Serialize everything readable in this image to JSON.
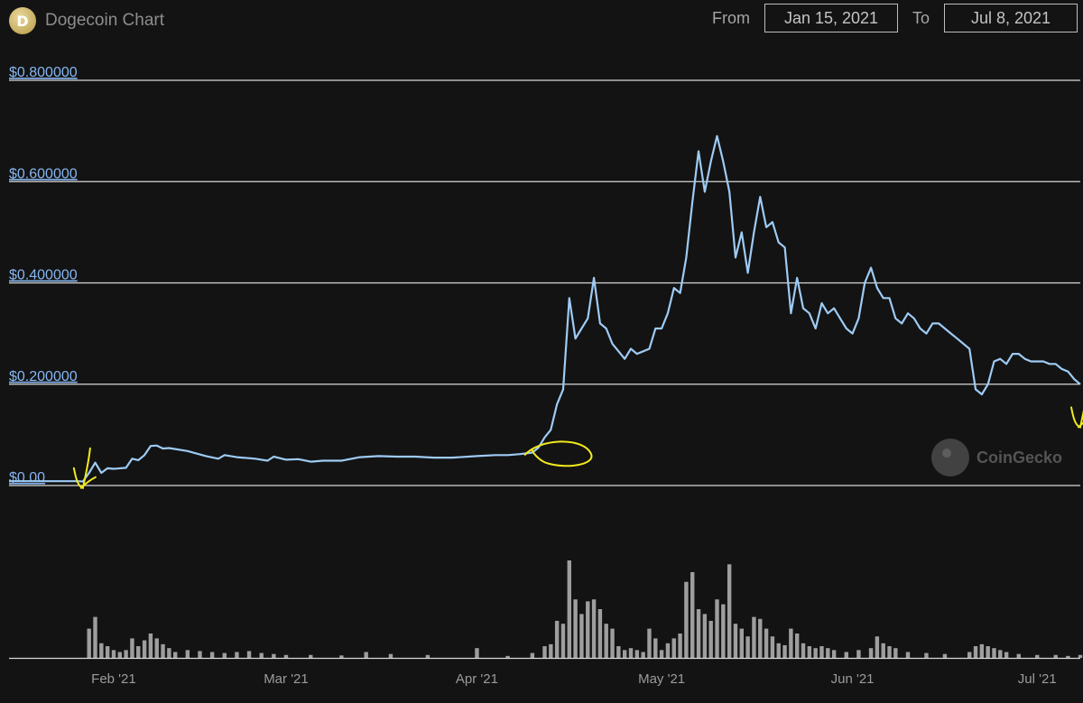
{
  "header": {
    "logo_letter": "D",
    "title": "Dogecoin Chart"
  },
  "range": {
    "from_label": "From",
    "from_value": "Jan 15, 2021",
    "to_label": "To",
    "to_value": "Jul 8, 2021"
  },
  "watermark": "CoinGecko",
  "colors": {
    "background": "#131313",
    "price_line": "#9ecbf5",
    "volume_bars": "#9e9e9e",
    "grid": "#d8d8d8",
    "annotation": "#f2ea1d",
    "ytick": "#86b6f2"
  },
  "chart_data": {
    "type": "line",
    "ylabel_format": "USD",
    "y_ticks": [
      "$0.00",
      "$0.200000",
      "$0.400000",
      "$0.600000",
      "$0.800000"
    ],
    "y_tick_values": [
      0,
      0.2,
      0.4,
      0.6,
      0.8
    ],
    "ylim": [
      0,
      0.8
    ],
    "x_ticks": [
      "Feb '21",
      "Mar '21",
      "Apr '21",
      "May '21",
      "Jun '21",
      "Jul '21"
    ],
    "x_tick_dates": [
      "2021-02-01",
      "2021-03-01",
      "2021-04-01",
      "2021-05-01",
      "2021-06-01",
      "2021-07-01"
    ],
    "xlim": [
      "2021-01-15",
      "2021-07-08"
    ],
    "grid": true,
    "series": [
      {
        "name": "",
        "kind": "price",
        "points": [
          [
            "2021-01-15",
            0.0085
          ],
          [
            "2021-01-20",
            0.0085
          ],
          [
            "2021-01-26",
            0.0085
          ],
          [
            "2021-01-27",
            0.008
          ],
          [
            "2021-01-28",
            0.025
          ],
          [
            "2021-01-29",
            0.045
          ],
          [
            "2021-01-30",
            0.025
          ],
          [
            "2021-01-31",
            0.034
          ],
          [
            "2021-02-01",
            0.033
          ],
          [
            "2021-02-03",
            0.035
          ],
          [
            "2021-02-04",
            0.053
          ],
          [
            "2021-02-05",
            0.05
          ],
          [
            "2021-02-06",
            0.06
          ],
          [
            "2021-02-07",
            0.078
          ],
          [
            "2021-02-08",
            0.079
          ],
          [
            "2021-02-09",
            0.073
          ],
          [
            "2021-02-10",
            0.074
          ],
          [
            "2021-02-13",
            0.068
          ],
          [
            "2021-02-16",
            0.058
          ],
          [
            "2021-02-18",
            0.053
          ],
          [
            "2021-02-19",
            0.06
          ],
          [
            "2021-02-21",
            0.056
          ],
          [
            "2021-02-24",
            0.053
          ],
          [
            "2021-02-26",
            0.049
          ],
          [
            "2021-02-27",
            0.057
          ],
          [
            "2021-03-01",
            0.051
          ],
          [
            "2021-03-03",
            0.052
          ],
          [
            "2021-03-05",
            0.047
          ],
          [
            "2021-03-07",
            0.049
          ],
          [
            "2021-03-10",
            0.049
          ],
          [
            "2021-03-13",
            0.056
          ],
          [
            "2021-03-16",
            0.058
          ],
          [
            "2021-03-19",
            0.057
          ],
          [
            "2021-03-22",
            0.057
          ],
          [
            "2021-03-25",
            0.055
          ],
          [
            "2021-03-28",
            0.055
          ],
          [
            "2021-04-01",
            0.058
          ],
          [
            "2021-04-04",
            0.06
          ],
          [
            "2021-04-06",
            0.06
          ],
          [
            "2021-04-08",
            0.062
          ],
          [
            "2021-04-10",
            0.065
          ],
          [
            "2021-04-11",
            0.075
          ],
          [
            "2021-04-12",
            0.095
          ],
          [
            "2021-04-13",
            0.11
          ],
          [
            "2021-04-14",
            0.16
          ],
          [
            "2021-04-15",
            0.19
          ],
          [
            "2021-04-16",
            0.37
          ],
          [
            "2021-04-17",
            0.29
          ],
          [
            "2021-04-18",
            0.31
          ],
          [
            "2021-04-19",
            0.33
          ],
          [
            "2021-04-20",
            0.41
          ],
          [
            "2021-04-21",
            0.32
          ],
          [
            "2021-04-22",
            0.31
          ],
          [
            "2021-04-23",
            0.28
          ],
          [
            "2021-04-24",
            0.265
          ],
          [
            "2021-04-25",
            0.25
          ],
          [
            "2021-04-26",
            0.27
          ],
          [
            "2021-04-27",
            0.26
          ],
          [
            "2021-04-28",
            0.265
          ],
          [
            "2021-04-29",
            0.27
          ],
          [
            "2021-04-30",
            0.31
          ],
          [
            "2021-05-01",
            0.31
          ],
          [
            "2021-05-02",
            0.34
          ],
          [
            "2021-05-03",
            0.39
          ],
          [
            "2021-05-04",
            0.38
          ],
          [
            "2021-05-05",
            0.45
          ],
          [
            "2021-05-06",
            0.56
          ],
          [
            "2021-05-07",
            0.66
          ],
          [
            "2021-05-08",
            0.58
          ],
          [
            "2021-05-09",
            0.64
          ],
          [
            "2021-05-10",
            0.69
          ],
          [
            "2021-05-11",
            0.64
          ],
          [
            "2021-05-12",
            0.58
          ],
          [
            "2021-05-13",
            0.45
          ],
          [
            "2021-05-14",
            0.5
          ],
          [
            "2021-05-15",
            0.42
          ],
          [
            "2021-05-16",
            0.5
          ],
          [
            "2021-05-17",
            0.57
          ],
          [
            "2021-05-18",
            0.51
          ],
          [
            "2021-05-19",
            0.52
          ],
          [
            "2021-05-20",
            0.48
          ],
          [
            "2021-05-21",
            0.47
          ],
          [
            "2021-05-22",
            0.34
          ],
          [
            "2021-05-23",
            0.41
          ],
          [
            "2021-05-24",
            0.35
          ],
          [
            "2021-05-25",
            0.34
          ],
          [
            "2021-05-26",
            0.31
          ],
          [
            "2021-05-27",
            0.36
          ],
          [
            "2021-05-28",
            0.34
          ],
          [
            "2021-05-29",
            0.35
          ],
          [
            "2021-05-30",
            0.33
          ],
          [
            "2021-05-31",
            0.31
          ],
          [
            "2021-06-01",
            0.3
          ],
          [
            "2021-06-02",
            0.33
          ],
          [
            "2021-06-03",
            0.4
          ],
          [
            "2021-06-04",
            0.43
          ],
          [
            "2021-06-05",
            0.39
          ],
          [
            "2021-06-06",
            0.37
          ],
          [
            "2021-06-07",
            0.37
          ],
          [
            "2021-06-08",
            0.33
          ],
          [
            "2021-06-09",
            0.32
          ],
          [
            "2021-06-10",
            0.34
          ],
          [
            "2021-06-11",
            0.33
          ],
          [
            "2021-06-12",
            0.31
          ],
          [
            "2021-06-13",
            0.3
          ],
          [
            "2021-06-14",
            0.32
          ],
          [
            "2021-06-15",
            0.32
          ],
          [
            "2021-06-16",
            0.31
          ],
          [
            "2021-06-17",
            0.3
          ],
          [
            "2021-06-18",
            0.29
          ],
          [
            "2021-06-19",
            0.28
          ],
          [
            "2021-06-20",
            0.27
          ],
          [
            "2021-06-21",
            0.19
          ],
          [
            "2021-06-22",
            0.18
          ],
          [
            "2021-06-23",
            0.2
          ],
          [
            "2021-06-24",
            0.245
          ],
          [
            "2021-06-25",
            0.25
          ],
          [
            "2021-06-26",
            0.24
          ],
          [
            "2021-06-27",
            0.26
          ],
          [
            "2021-06-28",
            0.26
          ],
          [
            "2021-06-29",
            0.25
          ],
          [
            "2021-06-30",
            0.245
          ],
          [
            "2021-07-01",
            0.245
          ],
          [
            "2021-07-02",
            0.245
          ],
          [
            "2021-07-03",
            0.24
          ],
          [
            "2021-07-04",
            0.24
          ],
          [
            "2021-07-05",
            0.23
          ],
          [
            "2021-07-06",
            0.225
          ],
          [
            "2021-07-07",
            0.21
          ],
          [
            "2021-07-08",
            0.2
          ]
        ]
      },
      {
        "name": "",
        "kind": "volume_relative",
        "points": [
          [
            "2021-01-28",
            0.3
          ],
          [
            "2021-01-29",
            0.42
          ],
          [
            "2021-01-30",
            0.15
          ],
          [
            "2021-01-31",
            0.12
          ],
          [
            "2021-02-01",
            0.08
          ],
          [
            "2021-02-02",
            0.06
          ],
          [
            "2021-02-03",
            0.08
          ],
          [
            "2021-02-04",
            0.2
          ],
          [
            "2021-02-05",
            0.12
          ],
          [
            "2021-02-06",
            0.18
          ],
          [
            "2021-02-07",
            0.25
          ],
          [
            "2021-02-08",
            0.2
          ],
          [
            "2021-02-09",
            0.14
          ],
          [
            "2021-02-10",
            0.1
          ],
          [
            "2021-02-11",
            0.06
          ],
          [
            "2021-02-13",
            0.08
          ],
          [
            "2021-02-15",
            0.07
          ],
          [
            "2021-02-17",
            0.06
          ],
          [
            "2021-02-19",
            0.05
          ],
          [
            "2021-02-21",
            0.06
          ],
          [
            "2021-02-23",
            0.07
          ],
          [
            "2021-02-25",
            0.05
          ],
          [
            "2021-02-27",
            0.04
          ],
          [
            "2021-03-01",
            0.03
          ],
          [
            "2021-03-05",
            0.03
          ],
          [
            "2021-03-10",
            0.025
          ],
          [
            "2021-03-14",
            0.06
          ],
          [
            "2021-03-18",
            0.04
          ],
          [
            "2021-03-24",
            0.03
          ],
          [
            "2021-04-01",
            0.1
          ],
          [
            "2021-04-06",
            0.02
          ],
          [
            "2021-04-10",
            0.05
          ],
          [
            "2021-04-12",
            0.12
          ],
          [
            "2021-04-13",
            0.14
          ],
          [
            "2021-04-14",
            0.38
          ],
          [
            "2021-04-15",
            0.35
          ],
          [
            "2021-04-16",
            1.0
          ],
          [
            "2021-04-17",
            0.6
          ],
          [
            "2021-04-18",
            0.45
          ],
          [
            "2021-04-19",
            0.58
          ],
          [
            "2021-04-20",
            0.6
          ],
          [
            "2021-04-21",
            0.5
          ],
          [
            "2021-04-22",
            0.35
          ],
          [
            "2021-04-23",
            0.3
          ],
          [
            "2021-04-24",
            0.12
          ],
          [
            "2021-04-25",
            0.08
          ],
          [
            "2021-04-26",
            0.1
          ],
          [
            "2021-04-27",
            0.08
          ],
          [
            "2021-04-28",
            0.06
          ],
          [
            "2021-04-29",
            0.3
          ],
          [
            "2021-04-30",
            0.2
          ],
          [
            "2021-05-01",
            0.08
          ],
          [
            "2021-05-02",
            0.15
          ],
          [
            "2021-05-03",
            0.2
          ],
          [
            "2021-05-04",
            0.25
          ],
          [
            "2021-05-05",
            0.78
          ],
          [
            "2021-05-06",
            0.88
          ],
          [
            "2021-05-07",
            0.5
          ],
          [
            "2021-05-08",
            0.45
          ],
          [
            "2021-05-09",
            0.38
          ],
          [
            "2021-05-10",
            0.6
          ],
          [
            "2021-05-11",
            0.55
          ],
          [
            "2021-05-12",
            0.96
          ],
          [
            "2021-05-13",
            0.35
          ],
          [
            "2021-05-14",
            0.3
          ],
          [
            "2021-05-15",
            0.22
          ],
          [
            "2021-05-16",
            0.42
          ],
          [
            "2021-05-17",
            0.4
          ],
          [
            "2021-05-18",
            0.3
          ],
          [
            "2021-05-19",
            0.22
          ],
          [
            "2021-05-20",
            0.15
          ],
          [
            "2021-05-21",
            0.13
          ],
          [
            "2021-05-22",
            0.3
          ],
          [
            "2021-05-23",
            0.25
          ],
          [
            "2021-05-24",
            0.15
          ],
          [
            "2021-05-25",
            0.12
          ],
          [
            "2021-05-26",
            0.1
          ],
          [
            "2021-05-27",
            0.12
          ],
          [
            "2021-05-28",
            0.1
          ],
          [
            "2021-05-29",
            0.08
          ],
          [
            "2021-05-31",
            0.06
          ],
          [
            "2021-06-02",
            0.08
          ],
          [
            "2021-06-04",
            0.1
          ],
          [
            "2021-06-05",
            0.22
          ],
          [
            "2021-06-06",
            0.15
          ],
          [
            "2021-06-07",
            0.12
          ],
          [
            "2021-06-08",
            0.1
          ],
          [
            "2021-06-10",
            0.06
          ],
          [
            "2021-06-13",
            0.05
          ],
          [
            "2021-06-16",
            0.04
          ],
          [
            "2021-06-20",
            0.06
          ],
          [
            "2021-06-21",
            0.12
          ],
          [
            "2021-06-22",
            0.14
          ],
          [
            "2021-06-23",
            0.12
          ],
          [
            "2021-06-24",
            0.1
          ],
          [
            "2021-06-25",
            0.08
          ],
          [
            "2021-06-26",
            0.06
          ],
          [
            "2021-06-28",
            0.04
          ],
          [
            "2021-07-01",
            0.03
          ],
          [
            "2021-07-04",
            0.03
          ],
          [
            "2021-07-06",
            0.02
          ],
          [
            "2021-07-08",
            0.03
          ]
        ]
      }
    ],
    "annotations": [
      {
        "kind": "hand-drawn-check",
        "at": "2021-01-27",
        "value": 0.02
      },
      {
        "kind": "hand-drawn-circle",
        "at": "2021-04-14",
        "value": 0.065
      },
      {
        "kind": "hand-drawn-check",
        "at": "2021-07-08",
        "value": 0.14
      }
    ]
  }
}
